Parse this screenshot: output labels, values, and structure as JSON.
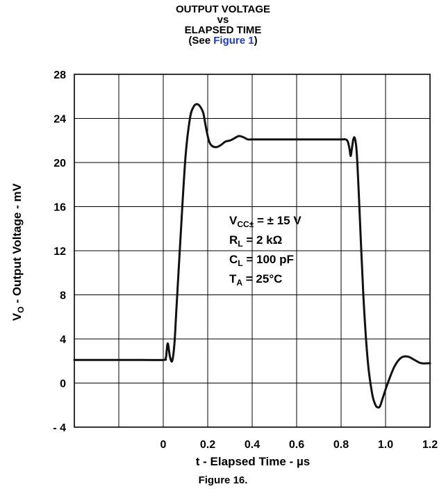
{
  "chart_data": {
    "type": "line",
    "title_lines": [
      "OUTPUT VOLTAGE",
      "vs",
      "ELAPSED TIME"
    ],
    "title_ref": {
      "prefix": "(See ",
      "link": "Figure 1",
      "suffix": ")"
    },
    "xlabel": "t - Elapsed Time - µs",
    "ylabel": {
      "prefix": "V",
      "sub": "O",
      "rest": " - Output  Voltage - mV"
    },
    "xlim": [
      -0.4,
      1.2
    ],
    "ylim": [
      -4,
      28
    ],
    "x_ticks": [
      {
        "value": 0,
        "label": "0"
      },
      {
        "value": 0.2,
        "label": "0.2"
      },
      {
        "value": 0.4,
        "label": "0.4"
      },
      {
        "value": 0.6,
        "label": "0.6"
      },
      {
        "value": 0.8,
        "label": "0.8"
      },
      {
        "value": 1.0,
        "label": "1.0"
      },
      {
        "value": 1.2,
        "label": "1.2"
      }
    ],
    "x_grid": [
      -0.4,
      -0.2,
      0,
      0.2,
      0.4,
      0.6,
      0.8,
      1.0,
      1.2
    ],
    "y_ticks": [
      {
        "value": -4,
        "label": "- 4"
      },
      {
        "value": 0,
        "label": "0"
      },
      {
        "value": 4,
        "label": "4"
      },
      {
        "value": 8,
        "label": "8"
      },
      {
        "value": 12,
        "label": "12"
      },
      {
        "value": 16,
        "label": "16"
      },
      {
        "value": 20,
        "label": "20"
      },
      {
        "value": 24,
        "label": "24"
      },
      {
        "value": 28,
        "label": "28"
      }
    ],
    "grid": true,
    "legend": "none",
    "line_color": "#111111",
    "series": [
      {
        "x": [
          -0.4,
          -0.1,
          0.0,
          0.012,
          0.02,
          0.03,
          0.04,
          0.05,
          0.06,
          0.08,
          0.1,
          0.12,
          0.135,
          0.15,
          0.165,
          0.18,
          0.19,
          0.205,
          0.22,
          0.24,
          0.26,
          0.28,
          0.3,
          0.32,
          0.34,
          0.36,
          0.38,
          0.4,
          0.5,
          0.6,
          0.7,
          0.8,
          0.82,
          0.83,
          0.838,
          0.843,
          0.848,
          0.855,
          0.862,
          0.87,
          0.88,
          0.9,
          0.92,
          0.94,
          0.955,
          0.965,
          0.975,
          0.99,
          1.01,
          1.04,
          1.07,
          1.1,
          1.13,
          1.16,
          1.2
        ],
        "y": [
          2.1,
          2.1,
          2.1,
          2.3,
          3.6,
          2.4,
          2.0,
          3.5,
          7.0,
          14.0,
          20.5,
          24.0,
          25.0,
          25.3,
          25.1,
          24.5,
          23.4,
          22.0,
          21.5,
          21.4,
          21.6,
          21.9,
          22.0,
          22.2,
          22.4,
          22.3,
          22.1,
          22.1,
          22.1,
          22.1,
          22.1,
          22.1,
          22.1,
          21.9,
          21.2,
          20.6,
          21.2,
          22.1,
          22.2,
          21.0,
          17.0,
          8.0,
          2.0,
          -1.0,
          -2.0,
          -2.2,
          -2.1,
          -1.2,
          0.0,
          1.5,
          2.3,
          2.4,
          2.1,
          1.8,
          1.8
        ]
      }
    ],
    "annotations": [
      {
        "main": "V",
        "sub": "CC±",
        "rest": " = ± 15 V"
      },
      {
        "main": "R",
        "sub": "L",
        "rest": " = 2 kΩ"
      },
      {
        "main": "C",
        "sub": "L",
        "rest": " = 100 pF"
      },
      {
        "main": "T",
        "sub": "A",
        "rest": " = 25°C"
      }
    ]
  },
  "caption": "Figure 16."
}
